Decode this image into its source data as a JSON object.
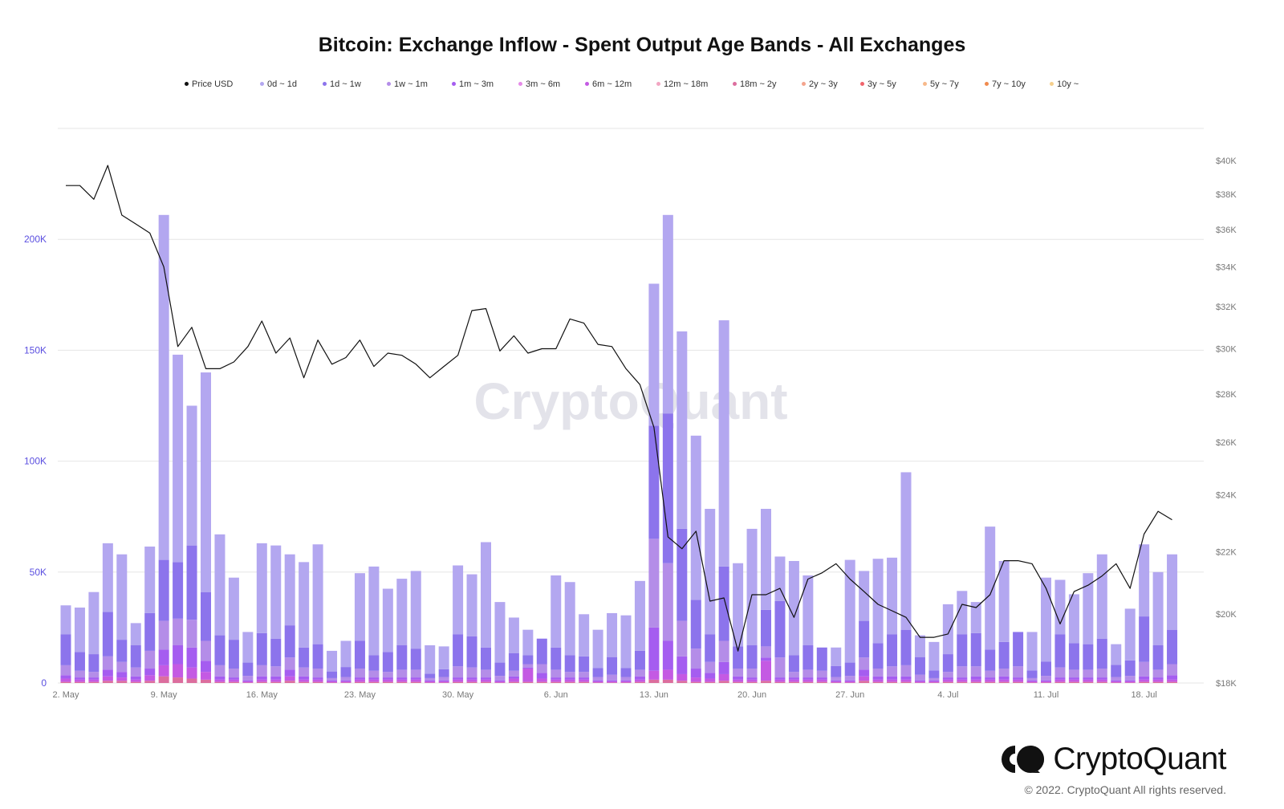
{
  "title": "Bitcoin: Exchange Inflow - Spent Output Age Bands - All Exchanges",
  "watermark": "CryptoQuant",
  "brand": {
    "name": "CryptoQuant",
    "copyright": "© 2022. CryptoQuant All rights reserved."
  },
  "legend": [
    {
      "label": "Price USD",
      "color": "#111111"
    },
    {
      "label": "0d ~ 1d",
      "color": "#b3a7f0"
    },
    {
      "label": "1d ~ 1w",
      "color": "#8c74ec"
    },
    {
      "label": "1w ~ 1m",
      "color": "#b48de8"
    },
    {
      "label": "1m ~ 3m",
      "color": "#a55df0"
    },
    {
      "label": "3m ~ 6m",
      "color": "#e58be8"
    },
    {
      "label": "6m ~ 12m",
      "color": "#c45ae3"
    },
    {
      "label": "12m ~ 18m",
      "color": "#f2a6c2"
    },
    {
      "label": "18m ~ 2y",
      "color": "#dc6e9e"
    },
    {
      "label": "2y ~ 3y",
      "color": "#f4a48d"
    },
    {
      "label": "3y ~ 5y",
      "color": "#f0646c"
    },
    {
      "label": "5y ~ 7y",
      "color": "#f7b98a"
    },
    {
      "label": "7y ~ 10y",
      "color": "#f08a4e"
    },
    {
      "label": "10y ~",
      "color": "#f5cf8c"
    }
  ],
  "chart_data": {
    "type": "bar",
    "stacked": true,
    "x_start": "2022-05-02",
    "x_end": "2022-07-21",
    "x_tick_labels": [
      "2. May",
      "9. May",
      "16. May",
      "23. May",
      "30. May",
      "6. Jun",
      "13. Jun",
      "20. Jun",
      "27. Jun",
      "4. Jul",
      "11. Jul",
      "18. Jul"
    ],
    "left_axis": {
      "ticks": [
        0,
        50000,
        100000,
        150000,
        200000
      ],
      "tick_labels": [
        "0",
        "50K",
        "100K",
        "150K",
        "200K"
      ],
      "range": [
        0,
        250000
      ],
      "color": "#5b4fe0"
    },
    "right_axis": {
      "ticks": [
        18000,
        20000,
        22000,
        24000,
        26000,
        28000,
        30000,
        32000,
        34000,
        36000,
        38000,
        40000
      ],
      "tick_labels": [
        "$18K",
        "$20K",
        "$22K",
        "$24K",
        "$26K",
        "$28K",
        "$30K",
        "$32K",
        "$34K",
        "$36K",
        "$38K",
        "$40K"
      ],
      "scale": "log",
      "range": [
        18000,
        40000
      ]
    },
    "grid": true,
    "legend_position": "top",
    "total_inflow": [
      35000,
      34000,
      41000,
      63000,
      58000,
      27000,
      61500,
      211000,
      148000,
      125000,
      140000,
      67000,
      47500,
      23000,
      63000,
      62000,
      58000,
      54500,
      62500,
      14500,
      19000,
      49500,
      52500,
      42500,
      47000,
      50500,
      17000,
      16500,
      53000,
      49000,
      63500,
      36500,
      29500,
      24000,
      18500,
      48500,
      45500,
      31000,
      24000,
      31500,
      30500,
      46000,
      180000,
      211000,
      158500,
      111500,
      78500,
      163500,
      54000,
      69500,
      78500,
      57000,
      55000,
      48500,
      16000,
      16000,
      55500,
      50500,
      56000,
      56500,
      95000,
      21500,
      18500,
      35500,
      41500,
      36500,
      70500,
      55000,
      20500,
      23000,
      47500,
      46500,
      40000,
      49500,
      58000,
      17500,
      33500,
      62500,
      50000,
      58000
    ],
    "band_1d_1w": [
      14000,
      8500,
      8000,
      20000,
      10000,
      10000,
      17000,
      27500,
      25500,
      33500,
      22000,
      13500,
      13000,
      6000,
      14500,
      12500,
      14500,
      9000,
      11000,
      3000,
      4500,
      12500,
      7000,
      9000,
      11000,
      9500,
      2000,
      3500,
      14500,
      14000,
      10000,
      6000,
      8000,
      4000,
      11500,
      10000,
      7500,
      7000,
      4000,
      8000,
      4000,
      8500,
      51000,
      67500,
      41500,
      22000,
      12500,
      33500,
      10000,
      10500,
      16500,
      25500,
      7500,
      11000,
      10500,
      5000,
      6000,
      16500,
      11500,
      14500,
      16000,
      8000,
      3500,
      8000,
      14500,
      15000,
      9500,
      12000,
      15500,
      3500,
      6500,
      15000,
      12000,
      11500,
      13500,
      5500,
      7000,
      20500,
      11000,
      15500
    ],
    "band_1w_1m": [
      4500,
      3000,
      2500,
      6000,
      4500,
      4000,
      8000,
      13000,
      12000,
      12500,
      9000,
      5000,
      4000,
      2000,
      5000,
      4500,
      5500,
      4000,
      4000,
      1000,
      1500,
      4000,
      3000,
      2500,
      3500,
      3500,
      1000,
      1500,
      5000,
      4500,
      3500,
      2000,
      2500,
      1500,
      4000,
      3500,
      2500,
      2500,
      1500,
      2500,
      1500,
      3000,
      40000,
      35000,
      16000,
      9000,
      5000,
      9500,
      3500,
      4000,
      5000,
      9000,
      2500,
      3500,
      3000,
      1500,
      2000,
      5500,
      3500,
      4500,
      5000,
      2500,
      1000,
      2500,
      5000,
      4500,
      3000,
      3500,
      5000,
      1000,
      2000,
      4500,
      3500,
      3500,
      4000,
      1500,
      2000,
      6500,
      3500,
      5000
    ],
    "band_1m_3m": [
      1500,
      1000,
      1000,
      3000,
      2500,
      1500,
      3000,
      7000,
      8500,
      9000,
      5000,
      1500,
      1000,
      500,
      1500,
      1500,
      3000,
      1500,
      1000,
      500,
      500,
      1000,
      1000,
      1000,
      1000,
      1000,
      500,
      500,
      1000,
      1000,
      1000,
      500,
      1000,
      500,
      2500,
      1000,
      1000,
      1000,
      500,
      500,
      500,
      1500,
      19500,
      13000,
      8000,
      4000,
      2500,
      5500,
      1500,
      1000,
      1500,
      1000,
      1000,
      1000,
      1000,
      500,
      500,
      3000,
      1500,
      1500,
      1500,
      500,
      500,
      1000,
      1000,
      1500,
      1000,
      1500,
      1000,
      500,
      500,
      1000,
      1000,
      1000,
      1000,
      500,
      500,
      1500,
      1000,
      2000
    ],
    "band_3m_12m": [
      1500,
      1000,
      1000,
      2000,
      1500,
      1000,
      2500,
      5000,
      6000,
      5000,
      3500,
      1000,
      1000,
      500,
      1000,
      1000,
      2000,
      1000,
      1000,
      500,
      500,
      1000,
      1000,
      1000,
      1000,
      1000,
      500,
      500,
      1000,
      1000,
      1000,
      500,
      1500,
      6000,
      1500,
      1000,
      1000,
      1000,
      500,
      500,
      500,
      1000,
      4000,
      4500,
      3000,
      2000,
      1500,
      3000,
      1000,
      1000,
      9000,
      1000,
      1000,
      1000,
      1000,
      500,
      500,
      2000,
      1000,
      1000,
      1000,
      500,
      500,
      1000,
      1000,
      1000,
      1000,
      1000,
      1000,
      500,
      500,
      1000,
      1000,
      1000,
      1000,
      500,
      500,
      1000,
      1000,
      1000
    ],
    "band_1y_plus": [
      500,
      500,
      500,
      1000,
      1000,
      500,
      1000,
      3000,
      2500,
      2000,
      1500,
      500,
      500,
      200,
      500,
      500,
      1000,
      500,
      500,
      200,
      200,
      500,
      500,
      500,
      500,
      500,
      200,
      200,
      500,
      500,
      500,
      200,
      500,
      500,
      500,
      500,
      500,
      500,
      200,
      200,
      200,
      500,
      1500,
      1500,
      1000,
      500,
      500,
      1000,
      500,
      500,
      1000,
      500,
      500,
      500,
      500,
      200,
      200,
      1000,
      500,
      500,
      500,
      200,
      200,
      500,
      500,
      500,
      500,
      500,
      500,
      200,
      200,
      500,
      500,
      500,
      500,
      200,
      200,
      500,
      500,
      500
    ],
    "price_usd": [
      38500,
      38500,
      37700,
      39700,
      36800,
      36300,
      35800,
      34000,
      30100,
      31000,
      29100,
      29100,
      29400,
      30100,
      31300,
      29800,
      30500,
      28700,
      30400,
      29300,
      29600,
      30400,
      29200,
      29800,
      29700,
      29300,
      28700,
      29200,
      29700,
      31800,
      31900,
      29900,
      30600,
      29800,
      30000,
      30000,
      31400,
      31200,
      30200,
      30100,
      29100,
      28400,
      26600,
      22500,
      22100,
      22700,
      20400,
      20500,
      18900,
      20600,
      20600,
      20800,
      19900,
      21100,
      21300,
      21600,
      21100,
      20700,
      20300,
      20100,
      19900,
      19300,
      19300,
      19400,
      20300,
      20200,
      20600,
      21700,
      21700,
      21600,
      20800,
      19700,
      20700,
      20900,
      21200,
      21600,
      20800,
      22600,
      23400,
      23100
    ]
  }
}
